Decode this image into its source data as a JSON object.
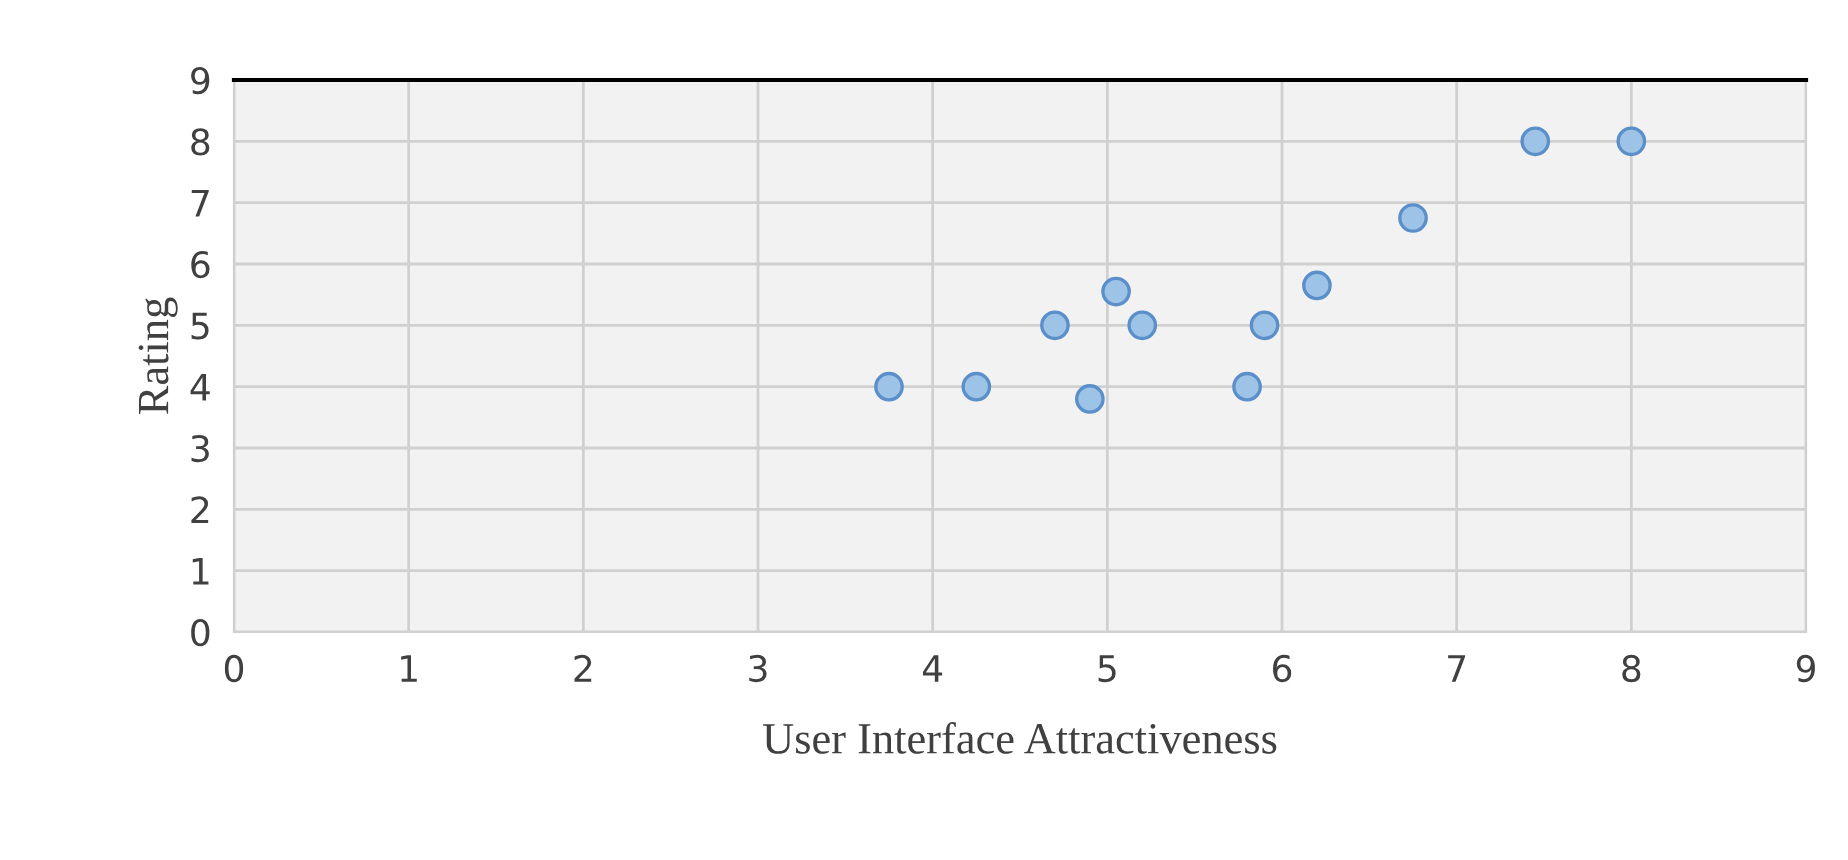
{
  "chart_data": {
    "type": "scatter",
    "xlabel": "User Interface Attractiveness",
    "ylabel": "Rating",
    "x": [
      3.75,
      4.25,
      4.7,
      4.9,
      5.05,
      5.2,
      5.8,
      5.9,
      6.2,
      6.75,
      7.45,
      8.0
    ],
    "series": [
      {
        "color": "#9dc3e6",
        "values": [
          4,
          4,
          5,
          3.8,
          5.55,
          5,
          4,
          5,
          5.65,
          6.75,
          8,
          8
        ]
      }
    ],
    "xlim": [
      0,
      9
    ],
    "ylim": [
      0,
      9
    ],
    "xticks": [
      0,
      1,
      2,
      3,
      4,
      5,
      6,
      7,
      8,
      9
    ],
    "yticks": [
      0,
      1,
      2,
      3,
      4,
      5,
      6,
      7,
      8,
      9
    ],
    "grid": true,
    "marker": "circle"
  }
}
